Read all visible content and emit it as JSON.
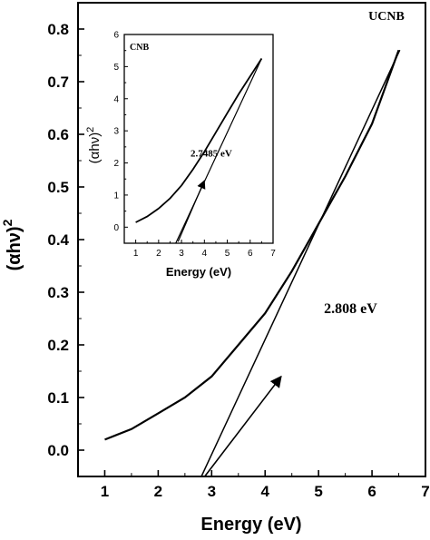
{
  "chart_data": [
    {
      "id": "main",
      "type": "line",
      "sample_label": "UCNB",
      "xlabel": "Energy (eV)",
      "ylabel": "(αhν)²",
      "ylabel_base": "(αhν)",
      "ylabel_sup": "2",
      "xlim": [
        0.5,
        7
      ],
      "ylim": [
        -0.05,
        0.85
      ],
      "xticks": [
        1,
        2,
        3,
        4,
        5,
        6,
        7
      ],
      "xtick_labels": [
        "1",
        "2",
        "3",
        "4",
        "5",
        "6",
        "7"
      ],
      "yticks": [
        0.0,
        0.1,
        0.2,
        0.3,
        0.4,
        0.5,
        0.6,
        0.7,
        0.8
      ],
      "ytick_labels": [
        "0.0",
        "0.1",
        "0.2",
        "0.3",
        "0.4",
        "0.5",
        "0.6",
        "0.7",
        "0.8"
      ],
      "series": [
        {
          "x": [
            1.0,
            1.5,
            2.0,
            2.5,
            3.0,
            3.5,
            4.0,
            4.5,
            5.0,
            5.5,
            6.0,
            6.5
          ],
          "y": [
            0.02,
            0.04,
            0.07,
            0.1,
            0.14,
            0.2,
            0.26,
            0.34,
            0.43,
            0.52,
            0.62,
            0.76
          ]
        }
      ],
      "tangent": {
        "x": [
          2.808,
          6.52
        ],
        "y": [
          -0.05,
          0.76
        ]
      },
      "annotation": {
        "text": "2.808 eV",
        "text_x": 5.6,
        "text_y": 0.26,
        "arrow_from": [
          2.87,
          -0.05
        ],
        "arrow_to": [
          4.3,
          0.14
        ]
      }
    },
    {
      "id": "inset",
      "type": "line",
      "sample_label": "CNB",
      "xlabel": "Energy (eV)",
      "ylabel": "(αhν)²",
      "ylabel_base": "(αhν)",
      "ylabel_sup": "2",
      "xlim": [
        0.5,
        7
      ],
      "ylim": [
        -0.5,
        6
      ],
      "xticks": [
        1,
        2,
        3,
        4,
        5,
        6,
        7
      ],
      "xtick_labels": [
        "1",
        "2",
        "3",
        "4",
        "5",
        "6",
        "7"
      ],
      "yticks": [
        0,
        1,
        2,
        3,
        4,
        5,
        6
      ],
      "ytick_labels": [
        "0",
        "1",
        "2",
        "3",
        "4",
        "5",
        "6"
      ],
      "series": [
        {
          "x": [
            1.0,
            1.5,
            2.0,
            2.5,
            3.0,
            3.5,
            4.0,
            4.5,
            5.0,
            5.5,
            6.0,
            6.5
          ],
          "y": [
            0.15,
            0.33,
            0.58,
            0.9,
            1.3,
            1.8,
            2.35,
            2.95,
            3.55,
            4.15,
            4.7,
            5.25
          ]
        }
      ],
      "tangent": {
        "x": [
          2.7485,
          6.5
        ],
        "y": [
          -0.5,
          5.25
        ]
      },
      "annotation": {
        "text": "2.7485 eV",
        "text_x": 4.3,
        "text_y": 2.2,
        "arrow_from": [
          2.85,
          -0.45
        ],
        "arrow_to": [
          4.0,
          1.45
        ]
      }
    }
  ]
}
